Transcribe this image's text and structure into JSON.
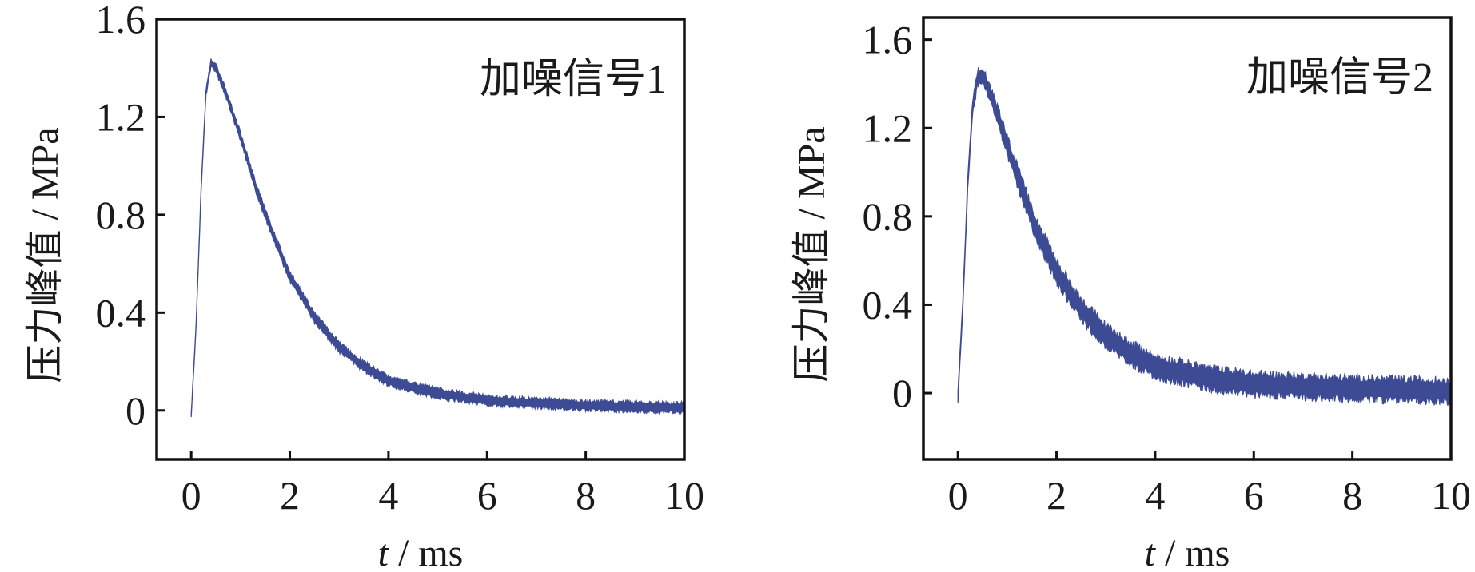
{
  "chart_data": [
    {
      "type": "line",
      "annotation": "加噪信号1",
      "xlabel_var": "t",
      "xlabel_unit": " / ms",
      "ylabel": "压力峰值 / MPa",
      "xlim": [
        -0.7,
        10
      ],
      "ylim": [
        -0.2,
        1.6
      ],
      "xticks": [
        0,
        2,
        4,
        6,
        8,
        10
      ],
      "xtick_labels": [
        "0",
        "2",
        "4",
        "6",
        "8",
        "10"
      ],
      "yticks": [
        0,
        0.4,
        0.8,
        1.2,
        1.6
      ],
      "ytick_labels": [
        "0",
        "0.4",
        "0.8",
        "1.2",
        "1.6"
      ],
      "series": [
        {
          "color": "#3d4a94",
          "x": [
            0,
            0.1,
            0.2,
            0.3,
            0.4,
            0.5,
            0.7,
            1.0,
            1.3,
            1.6,
            2.0,
            2.5,
            3.0,
            3.5,
            4.0,
            5.0,
            6.0,
            7.0,
            8.0,
            9.0,
            10.0
          ],
          "y": [
            -0.02,
            0.35,
            0.9,
            1.3,
            1.42,
            1.4,
            1.3,
            1.12,
            0.92,
            0.75,
            0.55,
            0.38,
            0.26,
            0.18,
            0.12,
            0.07,
            0.04,
            0.03,
            0.02,
            0.015,
            0.01
          ],
          "noise_band": 0.02
        }
      ]
    },
    {
      "type": "line",
      "annotation": "加噪信号2",
      "xlabel_var": "t",
      "xlabel_unit": " / ms",
      "ylabel": "压力峰值 / MPa",
      "xlim": [
        -0.7,
        10
      ],
      "ylim": [
        -0.3,
        1.7
      ],
      "xticks": [
        0,
        2,
        4,
        6,
        8,
        10
      ],
      "xtick_labels": [
        "0",
        "2",
        "4",
        "6",
        "8",
        "10"
      ],
      "yticks": [
        0,
        0.4,
        0.8,
        1.2,
        1.6
      ],
      "ytick_labels": [
        "0",
        "0.4",
        "0.8",
        "1.2",
        "1.6"
      ],
      "series": [
        {
          "color": "#3d4a94",
          "x": [
            0,
            0.1,
            0.2,
            0.3,
            0.4,
            0.5,
            0.7,
            1.0,
            1.3,
            1.6,
            2.0,
            2.5,
            3.0,
            3.5,
            4.0,
            5.0,
            6.0,
            7.0,
            8.0,
            9.0,
            10.0
          ],
          "y": [
            -0.02,
            0.4,
            0.95,
            1.3,
            1.43,
            1.44,
            1.33,
            1.12,
            0.92,
            0.74,
            0.55,
            0.38,
            0.26,
            0.18,
            0.12,
            0.07,
            0.04,
            0.03,
            0.02,
            0.015,
            0.01
          ],
          "noise_band": 0.06
        }
      ]
    }
  ]
}
